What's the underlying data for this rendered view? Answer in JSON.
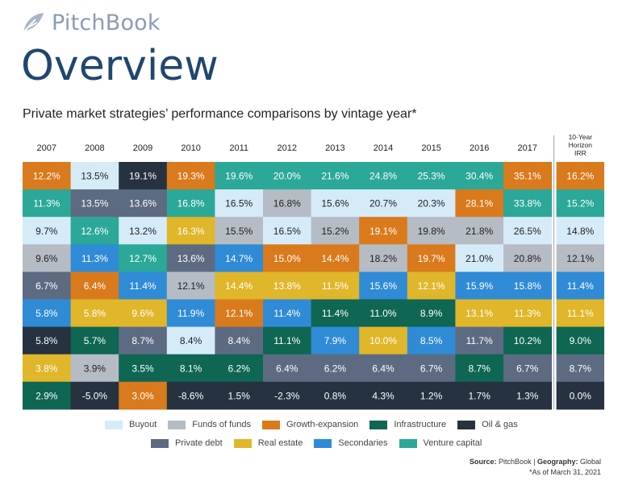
{
  "header": {
    "logo_text": "PitchBook",
    "title": "Overview",
    "subtitle": "Private market strategies’ performance comparisons by vintage year*"
  },
  "colors": {
    "Buyout": "#d6ebf8",
    "Funds of funds": "#b6bcc4",
    "Growth-expansion": "#d97a1c",
    "Infrastructure": "#0e6653",
    "Oil & gas": "#26323f",
    "Private debt": "#5d6b82",
    "Real estate": "#e0b62b",
    "Secondaries": "#2f8bd6",
    "Venture capital": "#2ba898"
  },
  "chart_data": {
    "type": "table",
    "title": "Private market strategies’ performance comparisons by vintage year*",
    "columns": [
      "2007",
      "2008",
      "2009",
      "2010",
      "2011",
      "2012",
      "2013",
      "2014",
      "2015",
      "2016",
      "2017"
    ],
    "irr_header_lines": [
      "10-Year",
      "Horizon",
      "IRR"
    ],
    "grid": [
      [
        [
          "12.2%",
          "Growth-expansion"
        ],
        [
          "13.5%",
          "Buyout"
        ],
        [
          "19.1%",
          "Oil & gas"
        ],
        [
          "19.3%",
          "Growth-expansion"
        ],
        [
          "19.6%",
          "Venture capital"
        ],
        [
          "20.0%",
          "Venture capital"
        ],
        [
          "21.6%",
          "Venture capital"
        ],
        [
          "24.8%",
          "Venture capital"
        ],
        [
          "25.3%",
          "Venture capital"
        ],
        [
          "30.4%",
          "Venture capital"
        ],
        [
          "35.1%",
          "Growth-expansion"
        ]
      ],
      [
        [
          "11.3%",
          "Venture capital"
        ],
        [
          "13.5%",
          "Private debt"
        ],
        [
          "13.6%",
          "Private debt"
        ],
        [
          "16.8%",
          "Venture capital"
        ],
        [
          "16.5%",
          "Buyout"
        ],
        [
          "16.8%",
          "Funds of funds"
        ],
        [
          "15.6%",
          "Buyout"
        ],
        [
          "20.7%",
          "Buyout"
        ],
        [
          "20.3%",
          "Buyout"
        ],
        [
          "28.1%",
          "Growth-expansion"
        ],
        [
          "33.8%",
          "Venture capital"
        ]
      ],
      [
        [
          "9.7%",
          "Buyout"
        ],
        [
          "12.6%",
          "Venture capital"
        ],
        [
          "13.2%",
          "Buyout"
        ],
        [
          "16.3%",
          "Real estate"
        ],
        [
          "15.5%",
          "Funds of funds"
        ],
        [
          "16.5%",
          "Buyout"
        ],
        [
          "15.2%",
          "Funds of funds"
        ],
        [
          "19.1%",
          "Growth-expansion"
        ],
        [
          "19.8%",
          "Funds of funds"
        ],
        [
          "21.8%",
          "Funds of funds"
        ],
        [
          "26.5%",
          "Buyout"
        ]
      ],
      [
        [
          "9.6%",
          "Funds of funds"
        ],
        [
          "11.3%",
          "Secondaries"
        ],
        [
          "12.7%",
          "Venture capital"
        ],
        [
          "13.6%",
          "Private debt"
        ],
        [
          "14.7%",
          "Secondaries"
        ],
        [
          "15.0%",
          "Growth-expansion"
        ],
        [
          "14.4%",
          "Growth-expansion"
        ],
        [
          "18.2%",
          "Funds of funds"
        ],
        [
          "19.7%",
          "Growth-expansion"
        ],
        [
          "21.0%",
          "Buyout"
        ],
        [
          "20.8%",
          "Funds of funds"
        ]
      ],
      [
        [
          "6.7%",
          "Private debt"
        ],
        [
          "6.4%",
          "Growth-expansion"
        ],
        [
          "11.4%",
          "Secondaries"
        ],
        [
          "12.1%",
          "Funds of funds"
        ],
        [
          "14.4%",
          "Real estate"
        ],
        [
          "13.8%",
          "Real estate"
        ],
        [
          "11.5%",
          "Real estate"
        ],
        [
          "15.6%",
          "Secondaries"
        ],
        [
          "12.1%",
          "Real estate"
        ],
        [
          "15.9%",
          "Secondaries"
        ],
        [
          "15.8%",
          "Secondaries"
        ]
      ],
      [
        [
          "5.8%",
          "Secondaries"
        ],
        [
          "5.8%",
          "Real estate"
        ],
        [
          "9.6%",
          "Real estate"
        ],
        [
          "11.9%",
          "Secondaries"
        ],
        [
          "12.1%",
          "Growth-expansion"
        ],
        [
          "11.4%",
          "Secondaries"
        ],
        [
          "11.4%",
          "Infrastructure"
        ],
        [
          "11.0%",
          "Infrastructure"
        ],
        [
          "8.9%",
          "Infrastructure"
        ],
        [
          "13.1%",
          "Real estate"
        ],
        [
          "11.3%",
          "Real estate"
        ]
      ],
      [
        [
          "5.8%",
          "Oil & gas"
        ],
        [
          "5.7%",
          "Infrastructure"
        ],
        [
          "8.7%",
          "Private debt"
        ],
        [
          "8.4%",
          "Buyout"
        ],
        [
          "8.4%",
          "Private debt"
        ],
        [
          "11.1%",
          "Infrastructure"
        ],
        [
          "7.9%",
          "Secondaries"
        ],
        [
          "10.0%",
          "Real estate"
        ],
        [
          "8.5%",
          "Secondaries"
        ],
        [
          "11.7%",
          "Private debt"
        ],
        [
          "10.2%",
          "Infrastructure"
        ]
      ],
      [
        [
          "3.8%",
          "Real estate"
        ],
        [
          "3.9%",
          "Funds of funds"
        ],
        [
          "3.5%",
          "Infrastructure"
        ],
        [
          "8.1%",
          "Infrastructure"
        ],
        [
          "6.2%",
          "Infrastructure"
        ],
        [
          "6.4%",
          "Private debt"
        ],
        [
          "6.2%",
          "Private debt"
        ],
        [
          "6.4%",
          "Private debt"
        ],
        [
          "6.7%",
          "Private debt"
        ],
        [
          "8.7%",
          "Infrastructure"
        ],
        [
          "6.7%",
          "Private debt"
        ]
      ],
      [
        [
          "2.9%",
          "Infrastructure"
        ],
        [
          "-5.0%",
          "Oil & gas"
        ],
        [
          "3.0%",
          "Growth-expansion"
        ],
        [
          "-8.6%",
          "Oil & gas"
        ],
        [
          "1.5%",
          "Oil & gas"
        ],
        [
          "-2.3%",
          "Oil & gas"
        ],
        [
          "0.8%",
          "Oil & gas"
        ],
        [
          "4.3%",
          "Oil & gas"
        ],
        [
          "1.2%",
          "Oil & gas"
        ],
        [
          "1.7%",
          "Oil & gas"
        ],
        [
          "1.3%",
          "Oil & gas"
        ]
      ]
    ],
    "irr": [
      [
        "16.2%",
        "Growth-expansion"
      ],
      [
        "15.2%",
        "Venture capital"
      ],
      [
        "14.8%",
        "Buyout"
      ],
      [
        "12.1%",
        "Funds of funds"
      ],
      [
        "11.4%",
        "Secondaries"
      ],
      [
        "11.1%",
        "Real estate"
      ],
      [
        "9.0%",
        "Infrastructure"
      ],
      [
        "8.7%",
        "Private debt"
      ],
      [
        "0.0%",
        "Oil & gas"
      ]
    ]
  },
  "legend": {
    "row1": [
      "Buyout",
      "Funds of funds",
      "Growth-expansion",
      "Infrastructure",
      "Oil & gas"
    ],
    "row2": [
      "Private debt",
      "Real estate",
      "Secondaries",
      "Venture capital"
    ]
  },
  "footer": {
    "source_label": "Source:",
    "source_value": "PitchBook",
    "separator": "|",
    "geo_label": "Geography:",
    "geo_value": "Global",
    "note": "*As of March 31, 2021"
  }
}
